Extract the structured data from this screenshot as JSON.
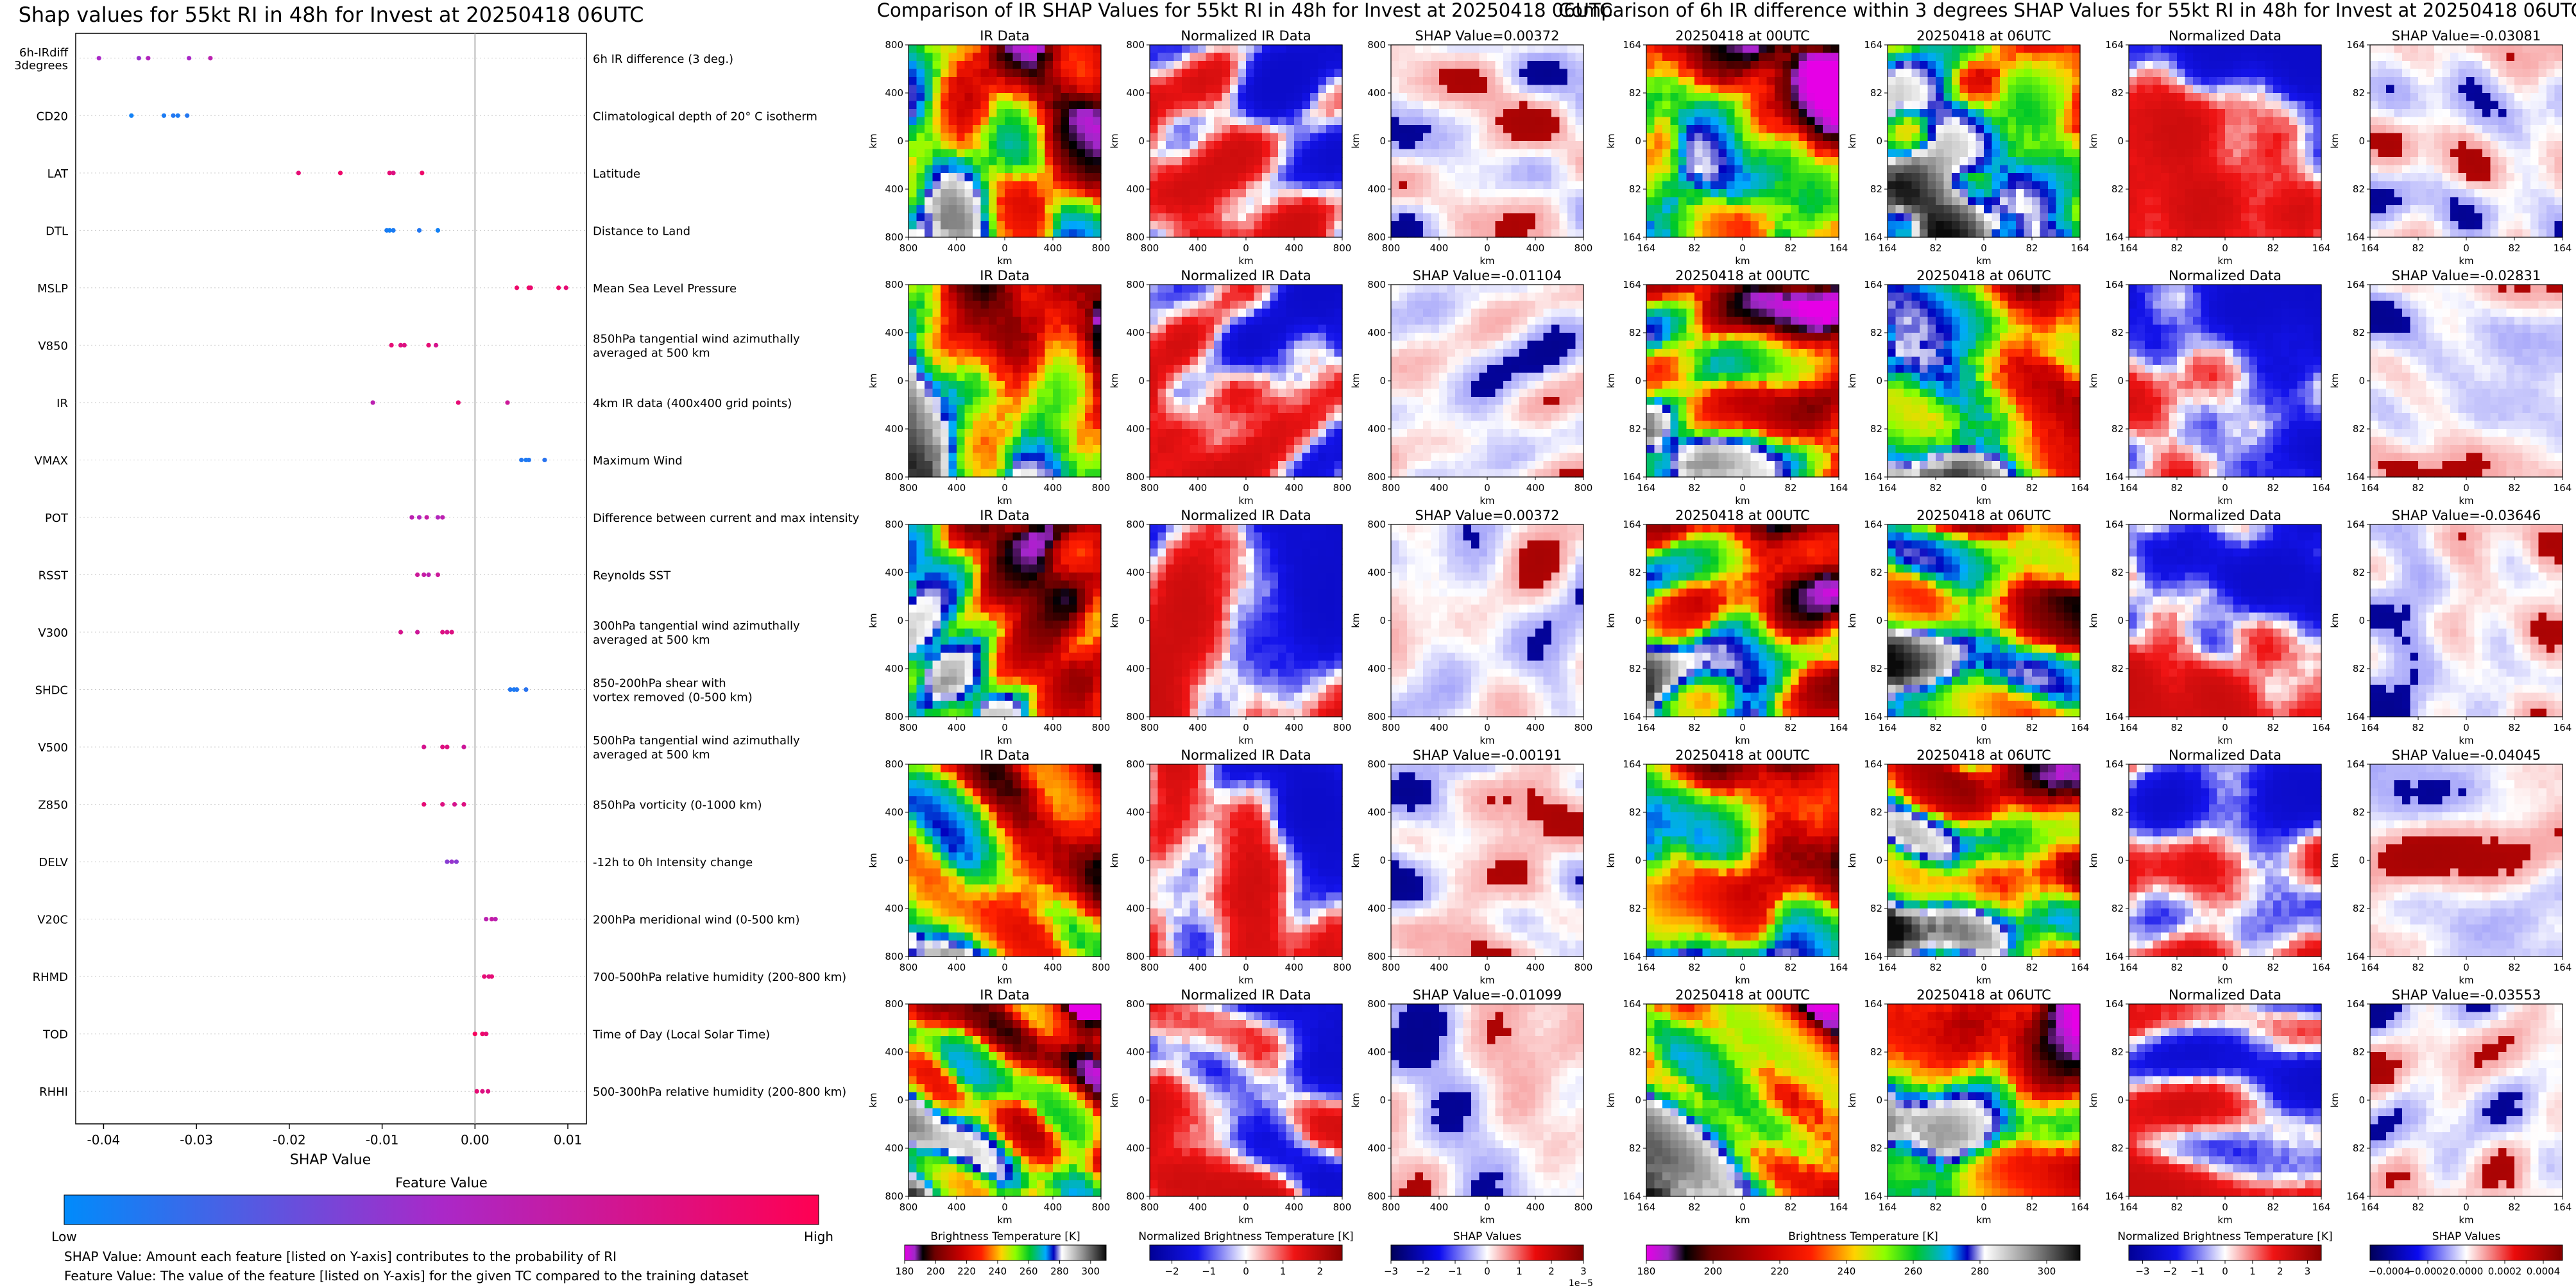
{
  "chart_data": [
    {
      "type": "scatter",
      "title": "Shap values for 55kt RI in 48h for Invest at 20250418 06UTC",
      "xlabel": "SHAP Value",
      "xlim": [
        -0.043,
        0.012
      ],
      "x_ticks": [
        "-0.04",
        "-0.03",
        "-0.02",
        "-0.01",
        "0.00",
        "0.01"
      ],
      "x_tick_values": [
        -0.04,
        -0.03,
        -0.02,
        -0.01,
        0.0,
        0.01
      ],
      "grid": "horizontal dotted",
      "colorbar": {
        "title": "Feature Value",
        "low_label": "Low",
        "high_label": "High",
        "low_color": "#008bfb",
        "high_color": "#ff0052"
      },
      "notes": [
        "SHAP Value: Amount each feature [listed on Y-axis] contributes to the probability of RI",
        "Feature Value: The value of the feature [listed on Y-axis] for the given TC compared to the training dataset"
      ],
      "features": [
        {
          "name": "6h-IRdiff\n3degrees",
          "desc": "6h IR difference (3 deg.)",
          "points": [
            [
              -0.0405,
              0.5
            ],
            [
              -0.0362,
              0.45
            ],
            [
              -0.0352,
              0.55
            ],
            [
              -0.0308,
              0.5
            ],
            [
              -0.0285,
              0.6
            ]
          ]
        },
        {
          "name": "CD20",
          "desc": "Climatological depth of 20° C isotherm",
          "points": [
            [
              -0.037,
              0.05
            ],
            [
              -0.0335,
              0.08
            ],
            [
              -0.0325,
              0.1
            ],
            [
              -0.032,
              0.08
            ],
            [
              -0.031,
              0.1
            ]
          ]
        },
        {
          "name": "LAT",
          "desc": "Latitude",
          "points": [
            [
              -0.019,
              0.85
            ],
            [
              -0.0145,
              0.9
            ],
            [
              -0.0092,
              0.85
            ],
            [
              -0.0088,
              0.8
            ],
            [
              -0.0057,
              0.9
            ]
          ]
        },
        {
          "name": "DTL",
          "desc": "Distance to Land",
          "points": [
            [
              -0.0095,
              0.08
            ],
            [
              -0.0092,
              0.05
            ],
            [
              -0.0088,
              0.08
            ],
            [
              -0.006,
              0.1
            ],
            [
              -0.004,
              0.05
            ]
          ]
        },
        {
          "name": "MSLP",
          "desc": "Mean Sea Level Pressure",
          "points": [
            [
              0.0045,
              0.9
            ],
            [
              0.0058,
              0.9
            ],
            [
              0.006,
              0.88
            ],
            [
              0.009,
              0.9
            ],
            [
              0.0098,
              0.85
            ]
          ]
        },
        {
          "name": "V850",
          "desc": "850hPa tangential wind azimuthally\naveraged at 500 km",
          "points": [
            [
              -0.009,
              0.85
            ],
            [
              -0.008,
              0.8
            ],
            [
              -0.0076,
              0.8
            ],
            [
              -0.005,
              0.85
            ],
            [
              -0.0042,
              0.75
            ]
          ]
        },
        {
          "name": "IR",
          "desc": "4km IR data (400x400 grid points)",
          "points": [
            [
              -0.011,
              0.6
            ],
            [
              -0.0018,
              0.85
            ],
            [
              0.0035,
              0.7
            ]
          ]
        },
        {
          "name": "VMAX",
          "desc": "Maximum Wind",
          "points": [
            [
              0.005,
              0.1
            ],
            [
              0.0055,
              0.08
            ],
            [
              0.0058,
              0.1
            ],
            [
              0.0075,
              0.12
            ]
          ]
        },
        {
          "name": "POT",
          "desc": "Difference between current and max intensity",
          "points": [
            [
              -0.0068,
              0.6
            ],
            [
              -0.006,
              0.55
            ],
            [
              -0.0052,
              0.65
            ],
            [
              -0.004,
              0.55
            ],
            [
              -0.0035,
              0.6
            ]
          ]
        },
        {
          "name": "RSST",
          "desc": "Reynolds SST",
          "points": [
            [
              -0.0062,
              0.7
            ],
            [
              -0.0055,
              0.65
            ],
            [
              -0.005,
              0.6
            ],
            [
              -0.004,
              0.7
            ]
          ]
        },
        {
          "name": "V300",
          "desc": "300hPa tangential wind azimuthally\naveraged at 500 km",
          "points": [
            [
              -0.008,
              0.75
            ],
            [
              -0.0062,
              0.7
            ],
            [
              -0.0035,
              0.8
            ],
            [
              -0.003,
              0.75
            ],
            [
              -0.0025,
              0.8
            ]
          ]
        },
        {
          "name": "SHDC",
          "desc": "850-200hPa shear with\nvortex removed (0-500 km)",
          "points": [
            [
              0.0038,
              0.1
            ],
            [
              0.0042,
              0.08
            ],
            [
              0.0045,
              0.1
            ],
            [
              0.0055,
              0.12
            ]
          ]
        },
        {
          "name": "V500",
          "desc": "500hPa tangential wind azimuthally\naveraged at 500 km",
          "points": [
            [
              -0.0055,
              0.75
            ],
            [
              -0.0035,
              0.8
            ],
            [
              -0.003,
              0.8
            ],
            [
              -0.0012,
              0.7
            ]
          ]
        },
        {
          "name": "Z850",
          "desc": "850hPa vorticity (0-1000 km)",
          "points": [
            [
              -0.0055,
              0.85
            ],
            [
              -0.0035,
              0.8
            ],
            [
              -0.0022,
              0.75
            ],
            [
              -0.0012,
              0.8
            ]
          ]
        },
        {
          "name": "DELV",
          "desc": "-12h to 0h Intensity change",
          "points": [
            [
              -0.003,
              0.4
            ],
            [
              -0.0025,
              0.45
            ],
            [
              -0.002,
              0.4
            ]
          ]
        },
        {
          "name": "V20C",
          "desc": "200hPa meridional wind (0-500 km)",
          "points": [
            [
              0.0012,
              0.6
            ],
            [
              0.0018,
              0.65
            ],
            [
              0.0022,
              0.6
            ]
          ]
        },
        {
          "name": "RHMD",
          "desc": "700-500hPa relative humidity (200-800 km)",
          "points": [
            [
              0.001,
              0.85
            ],
            [
              0.0015,
              0.8
            ],
            [
              0.0018,
              0.85
            ]
          ]
        },
        {
          "name": "TOD",
          "desc": "Time of Day (Local Solar Time)",
          "points": [
            [
              0.0,
              0.95
            ],
            [
              0.0008,
              0.9
            ],
            [
              0.0012,
              0.85
            ]
          ]
        },
        {
          "name": "RHHI",
          "desc": "500-300hPa relative humidity (200-800 km)",
          "points": [
            [
              0.0002,
              0.85
            ],
            [
              0.0008,
              0.8
            ],
            [
              0.0014,
              0.8
            ]
          ]
        }
      ]
    },
    {
      "type": "heatmap",
      "title": "Comparison of IR SHAP Values for 55kt RI in 48h for Invest at 20250418 06UTC",
      "columns": [
        {
          "kind": "ir",
          "titles": [
            "IR Data",
            "IR Data",
            "IR Data",
            "IR Data",
            "IR Data"
          ]
        },
        {
          "kind": "norm",
          "titles": [
            "Normalized IR Data",
            "Normalized IR Data",
            "Normalized IR Data",
            "Normalized IR Data",
            "Normalized IR Data"
          ]
        },
        {
          "kind": "shap",
          "titles": [
            "SHAP Value=0.00372",
            "SHAP Value=-0.01104",
            "SHAP Value=0.00372",
            "SHAP Value=-0.00191",
            "SHAP Value=-0.01099"
          ]
        }
      ],
      "xlabel": "km",
      "ylabel": "km",
      "x_ticks": [
        "800",
        "400",
        "0",
        "400",
        "800"
      ],
      "y_ticks": [
        "800",
        "400",
        "0",
        "400",
        "800"
      ],
      "colorbars": [
        {
          "label": "Brightness Temperature [K]",
          "ticks": [
            "180",
            "200",
            "220",
            "240",
            "260",
            "280",
            "300"
          ],
          "range": [
            180,
            310
          ]
        },
        {
          "label": "Normalized Brightness Temperature [K]",
          "ticks": [
            "−2",
            "−1",
            "0",
            "1",
            "2"
          ],
          "range": [
            -2.6,
            2.6
          ]
        },
        {
          "label": "SHAP Values",
          "ticks": [
            "−3",
            "−2",
            "−1",
            "0",
            "1",
            "2",
            "3"
          ],
          "range": [
            -3,
            3
          ],
          "offset": "1e−5"
        }
      ]
    },
    {
      "type": "heatmap",
      "title": "Comparison of 6h IR difference within 3 degrees SHAP Values for 55kt RI in 48h for Invest at 20250418 06UTC",
      "columns": [
        {
          "kind": "ir",
          "titles": [
            "20250418 at 00UTC",
            "20250418 at 00UTC",
            "20250418 at 00UTC",
            "20250418 at 00UTC",
            "20250418 at 00UTC"
          ]
        },
        {
          "kind": "ir2",
          "titles": [
            "20250418 at 06UTC",
            "20250418 at 06UTC",
            "20250418 at 06UTC",
            "20250418 at 06UTC",
            "20250418 at 06UTC"
          ]
        },
        {
          "kind": "norm",
          "titles": [
            "Normalized Data",
            "Normalized Data",
            "Normalized Data",
            "Normalized Data",
            "Normalized Data"
          ]
        },
        {
          "kind": "shap",
          "titles": [
            "SHAP Value=-0.03081",
            "SHAP Value=-0.02831",
            "SHAP Value=-0.03646",
            "SHAP Value=-0.04045",
            "SHAP Value=-0.03553"
          ]
        }
      ],
      "xlabel": "km",
      "ylabel": "km",
      "x_ticks": [
        "164",
        "82",
        "0",
        "82",
        "164"
      ],
      "y_ticks": [
        "164",
        "82",
        "0",
        "82",
        "164"
      ],
      "colorbars": [
        {
          "label": "Brightness Temperature [K]",
          "ticks": [
            "180",
            "200",
            "220",
            "240",
            "260",
            "280",
            "300"
          ],
          "range": [
            180,
            310
          ]
        },
        {
          "label": "Normalized Brightness Temperature [K]",
          "ticks": [
            "−3",
            "−2",
            "−1",
            "0",
            "1",
            "2",
            "3"
          ],
          "range": [
            -3.5,
            3.5
          ]
        },
        {
          "label": "SHAP Values",
          "ticks": [
            "−0.0004",
            "−0.0002",
            "0.0000",
            "0.0002",
            "0.0004"
          ],
          "range": [
            -0.0005,
            0.0005
          ]
        }
      ]
    }
  ]
}
